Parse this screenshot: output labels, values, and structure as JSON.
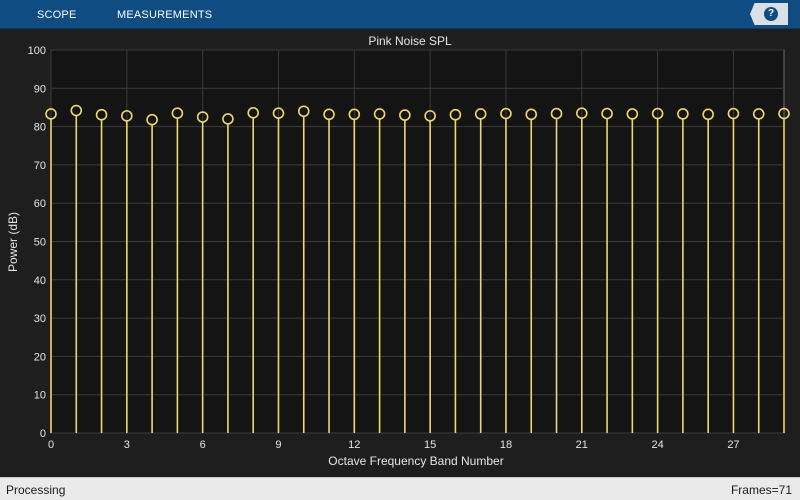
{
  "toolstrip": {
    "tabs": [
      {
        "label": "SCOPE"
      },
      {
        "label": "MEASUREMENTS"
      }
    ],
    "help_icon": "?"
  },
  "colors": {
    "toolstrip_bg": "#0f4c81",
    "figure_bg": "#1e1e1e",
    "axes_bg": "#141414",
    "grid": "#3b3b3b",
    "stem": "#f0d66e",
    "text": "#e6e6e6"
  },
  "chart_data": {
    "type": "stem",
    "title": "Pink Noise SPL",
    "xlabel": "Octave Frequency Band Number",
    "ylabel": "Power (dB)",
    "xlim": [
      0,
      29
    ],
    "ylim": [
      0,
      100
    ],
    "xticks": [
      0,
      3,
      6,
      9,
      12,
      15,
      18,
      21,
      24,
      27
    ],
    "yticks": [
      0,
      10,
      20,
      30,
      40,
      50,
      60,
      70,
      80,
      90,
      100
    ],
    "grid": true,
    "x": [
      0,
      1,
      2,
      3,
      4,
      5,
      6,
      7,
      8,
      9,
      10,
      11,
      12,
      13,
      14,
      15,
      16,
      17,
      18,
      19,
      20,
      21,
      22,
      23,
      24,
      25,
      26,
      27,
      28,
      29
    ],
    "values": [
      83.3,
      84.2,
      83.1,
      82.8,
      81.8,
      83.5,
      82.5,
      82.0,
      83.6,
      83.5,
      84.0,
      83.2,
      83.2,
      83.3,
      83.0,
      82.8,
      83.1,
      83.3,
      83.4,
      83.2,
      83.4,
      83.5,
      83.4,
      83.3,
      83.4,
      83.3,
      83.2,
      83.4,
      83.3,
      83.4
    ]
  },
  "status": {
    "left": "Processing",
    "right": "Frames=71"
  }
}
